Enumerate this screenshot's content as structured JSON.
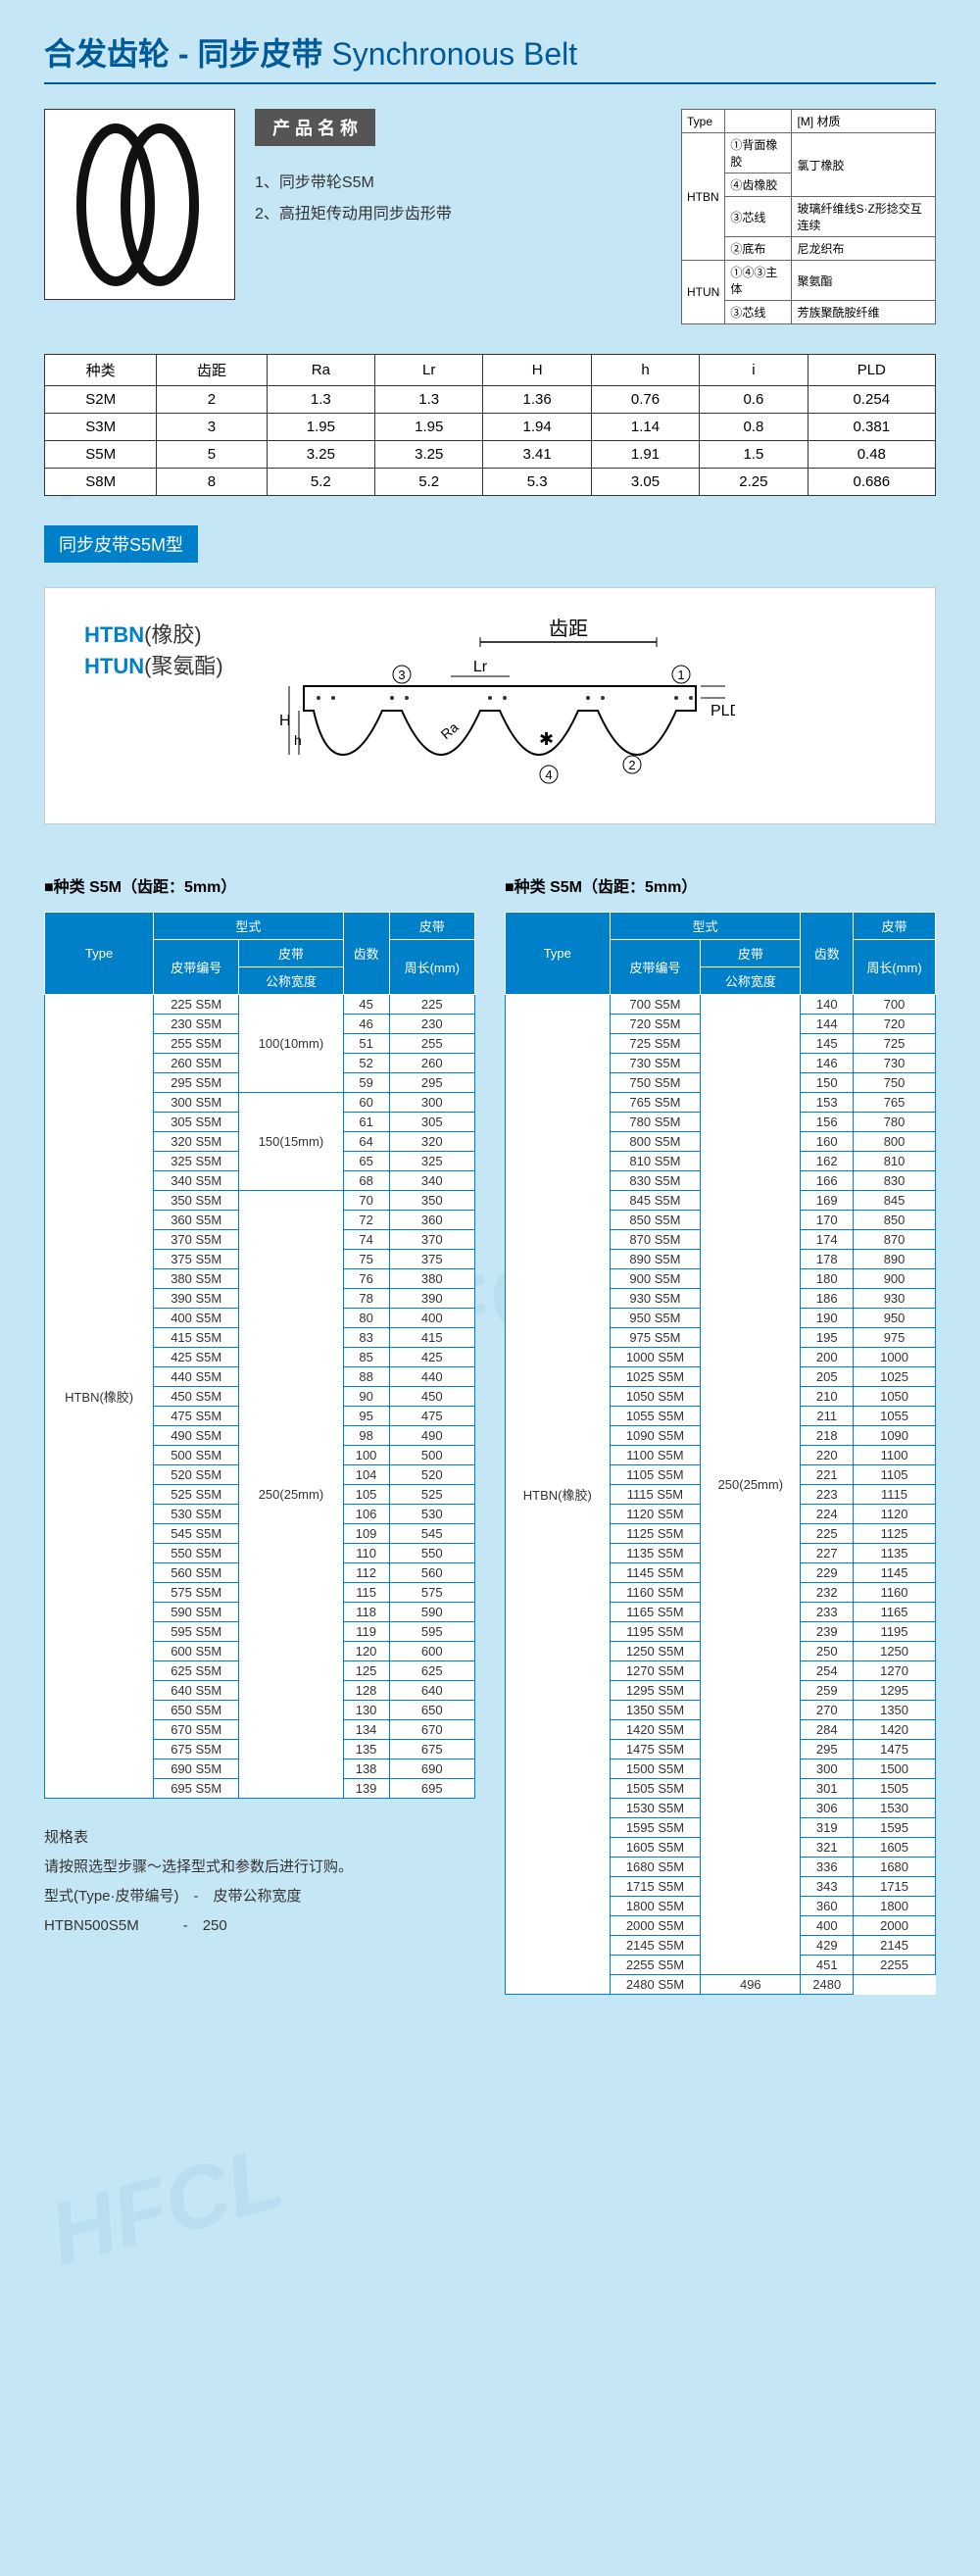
{
  "header": {
    "cn": "合发齿轮 - 同步皮带",
    "en": "Synchronous Belt"
  },
  "nameBadge": "产 品 名 称",
  "descs": [
    "1、同步带轮S5M",
    "2、高扭矩传动用同步齿形带"
  ],
  "matTable": {
    "hdr": [
      "Type",
      "",
      "[M] 材质"
    ],
    "rows": [
      {
        "t": "HTBN",
        "rs": 4,
        "c": [
          "①背面橡胶",
          "氯丁橡胶"
        ]
      },
      {
        "c": [
          "④齿橡胶",
          ""
        ],
        "merge": true
      },
      {
        "c": [
          "③芯线",
          "玻璃纤维线S·Z形捻交互连续"
        ]
      },
      {
        "c": [
          "②底布",
          "尼龙织布"
        ]
      },
      {
        "t": "HTUN",
        "rs": 2,
        "c": [
          "①④③主体",
          "聚氨酯"
        ]
      },
      {
        "c": [
          "③芯线",
          "芳族聚酰胺纤维"
        ]
      }
    ]
  },
  "specTable": {
    "head": [
      "种类",
      "齿距",
      "Ra",
      "Lr",
      "H",
      "h",
      "i",
      "PLD"
    ],
    "rows": [
      [
        "S2M",
        "2",
        "1.3",
        "1.3",
        "1.36",
        "0.76",
        "0.6",
        "0.254"
      ],
      [
        "S3M",
        "3",
        "1.95",
        "1.95",
        "1.94",
        "1.14",
        "0.8",
        "0.381"
      ],
      [
        "S5M",
        "5",
        "3.25",
        "3.25",
        "3.41",
        "1.91",
        "1.5",
        "0.48"
      ],
      [
        "S8M",
        "8",
        "5.2",
        "5.2",
        "5.3",
        "3.05",
        "2.25",
        "0.686"
      ]
    ]
  },
  "sectionHdr": "同步皮带S5M型",
  "diagramLbls": {
    "htbn": "HTBN",
    "htbnSub": "(橡胶)",
    "htun": "HTUN",
    "htunSub": "(聚氨酯)",
    "pitch": "齿距",
    "pld": "PLD"
  },
  "subTitle": "■种类 S5M（齿距：5mm）",
  "tableHdr": {
    "type": "Type",
    "style": "型式",
    "belt": "皮带",
    "teeth": "齿数",
    "circ": "皮带",
    "beltNo": "皮带编号",
    "width": "公称宽度",
    "circL": "周长(mm)"
  },
  "tableA": {
    "type": "HTBN(橡胶)",
    "widths": [
      "100(10mm)",
      "150(15mm)",
      "250(25mm)"
    ],
    "widthSpans": [
      5,
      5,
      32
    ],
    "rows": [
      [
        "225 S5M",
        "45",
        "225"
      ],
      [
        "230 S5M",
        "46",
        "230"
      ],
      [
        "255 S5M",
        "51",
        "255"
      ],
      [
        "260 S5M",
        "52",
        "260"
      ],
      [
        "295 S5M",
        "59",
        "295"
      ],
      [
        "300 S5M",
        "60",
        "300"
      ],
      [
        "305 S5M",
        "61",
        "305"
      ],
      [
        "320 S5M",
        "64",
        "320"
      ],
      [
        "325 S5M",
        "65",
        "325"
      ],
      [
        "340 S5M",
        "68",
        "340"
      ],
      [
        "350 S5M",
        "70",
        "350"
      ],
      [
        "360 S5M",
        "72",
        "360"
      ],
      [
        "370 S5M",
        "74",
        "370"
      ],
      [
        "375 S5M",
        "75",
        "375"
      ],
      [
        "380 S5M",
        "76",
        "380"
      ],
      [
        "390 S5M",
        "78",
        "390"
      ],
      [
        "400 S5M",
        "80",
        "400"
      ],
      [
        "415 S5M",
        "83",
        "415"
      ],
      [
        "425 S5M",
        "85",
        "425"
      ],
      [
        "440 S5M",
        "88",
        "440"
      ],
      [
        "450 S5M",
        "90",
        "450"
      ],
      [
        "475 S5M",
        "95",
        "475"
      ],
      [
        "490 S5M",
        "98",
        "490"
      ],
      [
        "500 S5M",
        "100",
        "500"
      ],
      [
        "520 S5M",
        "104",
        "520"
      ],
      [
        "525 S5M",
        "105",
        "525"
      ],
      [
        "530 S5M",
        "106",
        "530"
      ],
      [
        "545 S5M",
        "109",
        "545"
      ],
      [
        "550 S5M",
        "110",
        "550"
      ],
      [
        "560 S5M",
        "112",
        "560"
      ],
      [
        "575 S5M",
        "115",
        "575"
      ],
      [
        "590 S5M",
        "118",
        "590"
      ],
      [
        "595 S5M",
        "119",
        "595"
      ],
      [
        "600 S5M",
        "120",
        "600"
      ],
      [
        "625 S5M",
        "125",
        "625"
      ],
      [
        "640 S5M",
        "128",
        "640"
      ],
      [
        "650 S5M",
        "130",
        "650"
      ],
      [
        "670 S5M",
        "134",
        "670"
      ],
      [
        "675 S5M",
        "135",
        "675"
      ],
      [
        "690 S5M",
        "138",
        "690"
      ],
      [
        "695 S5M",
        "139",
        "695"
      ]
    ]
  },
  "tableB": {
    "type": "HTBN(橡胶)",
    "widths": [
      "250(25mm)"
    ],
    "widthSpans": [
      50
    ],
    "rows": [
      [
        "700 S5M",
        "140",
        "700"
      ],
      [
        "720 S5M",
        "144",
        "720"
      ],
      [
        "725 S5M",
        "145",
        "725"
      ],
      [
        "730 S5M",
        "146",
        "730"
      ],
      [
        "750 S5M",
        "150",
        "750"
      ],
      [
        "765 S5M",
        "153",
        "765"
      ],
      [
        "780 S5M",
        "156",
        "780"
      ],
      [
        "800 S5M",
        "160",
        "800"
      ],
      [
        "810 S5M",
        "162",
        "810"
      ],
      [
        "830 S5M",
        "166",
        "830"
      ],
      [
        "845 S5M",
        "169",
        "845"
      ],
      [
        "850 S5M",
        "170",
        "850"
      ],
      [
        "870 S5M",
        "174",
        "870"
      ],
      [
        "890 S5M",
        "178",
        "890"
      ],
      [
        "900 S5M",
        "180",
        "900"
      ],
      [
        "930 S5M",
        "186",
        "930"
      ],
      [
        "950 S5M",
        "190",
        "950"
      ],
      [
        "975 S5M",
        "195",
        "975"
      ],
      [
        "1000 S5M",
        "200",
        "1000"
      ],
      [
        "1025 S5M",
        "205",
        "1025"
      ],
      [
        "1050 S5M",
        "210",
        "1050"
      ],
      [
        "1055 S5M",
        "211",
        "1055"
      ],
      [
        "1090 S5M",
        "218",
        "1090"
      ],
      [
        "1100 S5M",
        "220",
        "1100"
      ],
      [
        "1105 S5M",
        "221",
        "1105"
      ],
      [
        "1115 S5M",
        "223",
        "1115"
      ],
      [
        "1120 S5M",
        "224",
        "1120"
      ],
      [
        "1125 S5M",
        "225",
        "1125"
      ],
      [
        "1135 S5M",
        "227",
        "1135"
      ],
      [
        "1145 S5M",
        "229",
        "1145"
      ],
      [
        "1160 S5M",
        "232",
        "1160"
      ],
      [
        "1165 S5M",
        "233",
        "1165"
      ],
      [
        "1195 S5M",
        "239",
        "1195"
      ],
      [
        "1250 S5M",
        "250",
        "1250"
      ],
      [
        "1270 S5M",
        "254",
        "1270"
      ],
      [
        "1295 S5M",
        "259",
        "1295"
      ],
      [
        "1350 S5M",
        "270",
        "1350"
      ],
      [
        "1420 S5M",
        "284",
        "1420"
      ],
      [
        "1475 S5M",
        "295",
        "1475"
      ],
      [
        "1500 S5M",
        "300",
        "1500"
      ],
      [
        "1505 S5M",
        "301",
        "1505"
      ],
      [
        "1530 S5M",
        "306",
        "1530"
      ],
      [
        "1595 S5M",
        "319",
        "1595"
      ],
      [
        "1605 S5M",
        "321",
        "1605"
      ],
      [
        "1680 S5M",
        "336",
        "1680"
      ],
      [
        "1715 S5M",
        "343",
        "1715"
      ],
      [
        "1800 S5M",
        "360",
        "1800"
      ],
      [
        "2000 S5M",
        "400",
        "2000"
      ],
      [
        "2145 S5M",
        "429",
        "2145"
      ],
      [
        "2255 S5M",
        "451",
        "2255"
      ],
      [
        "2480 S5M",
        "496",
        "2480"
      ]
    ]
  },
  "notes": {
    "title": "规格表",
    "line1": "请按照选型步骤～选择型式和参数后进行订购。",
    "line2a": "型式(Type·皮带编号)",
    "line2b": "皮带公称宽度",
    "exA": "HTBN500S5M",
    "exB": "250"
  },
  "watermark": "HFCL"
}
